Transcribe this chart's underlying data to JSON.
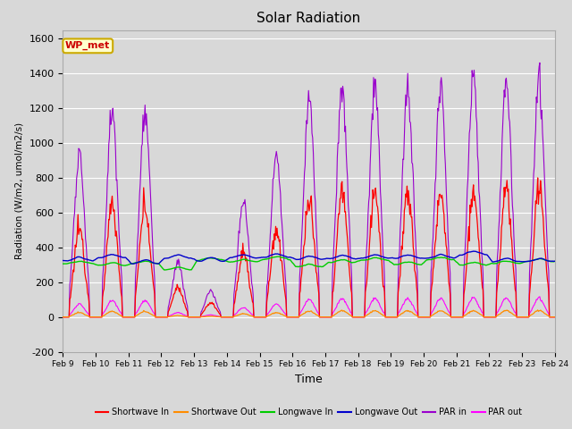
{
  "title": "Solar Radiation",
  "ylabel": "Radiation (W/m2, umol/m2/s)",
  "xlabel": "Time",
  "ylim": [
    -200,
    1650
  ],
  "yticks": [
    -200,
    0,
    200,
    400,
    600,
    800,
    1000,
    1200,
    1400,
    1600
  ],
  "x_labels": [
    "Feb 9",
    "Feb 10",
    "Feb 11",
    "Feb 12",
    "Feb 13",
    "Feb 14",
    "Feb 15",
    "Feb 16",
    "Feb 17",
    "Feb 18",
    "Feb 19",
    "Feb 20",
    "Feb 21",
    "Feb 22",
    "Feb 23",
    "Feb 24"
  ],
  "colors": {
    "shortwave_in": "#ff0000",
    "shortwave_out": "#ff8c00",
    "longwave_in": "#00cc00",
    "longwave_out": "#0000cc",
    "par_in": "#9900cc",
    "par_out": "#ff00ff"
  },
  "annotation_text": "WP_met",
  "annotation_bg": "#ffffcc",
  "annotation_border": "#ccaa00",
  "annotation_text_color": "#cc0000",
  "legend_entries": [
    "Shortwave In",
    "Shortwave Out",
    "Longwave In",
    "Longwave Out",
    "PAR in",
    "PAR out"
  ],
  "fig_bg": "#d8d8d8",
  "plot_bg": "#d8d8d8",
  "grid_color": "#ffffff"
}
